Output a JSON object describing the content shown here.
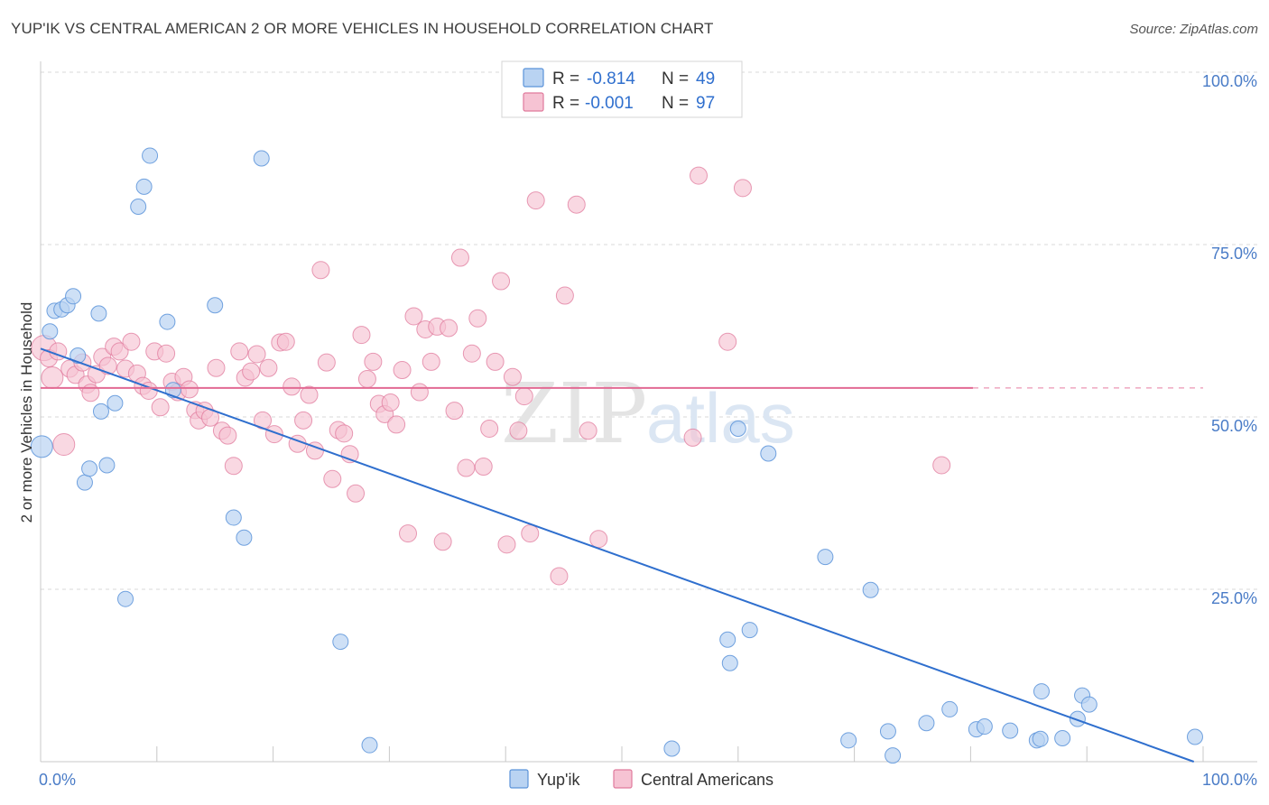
{
  "title": "YUP'IK VS CENTRAL AMERICAN 2 OR MORE VEHICLES IN HOUSEHOLD CORRELATION CHART",
  "source": "Source: ZipAtlas.com",
  "watermark": {
    "zip": "ZIP",
    "atlas": "atlas"
  },
  "colors": {
    "blue": "#5b93d9",
    "blue_fill": "#b9d3f2",
    "pink": "#e07a9c",
    "pink_fill": "#f6c3d3",
    "blue_line": "#2f6fce",
    "pink_line": "#e26a93"
  },
  "legend": {
    "rows": [
      {
        "r_label": "R =",
        "r_value": "-0.814",
        "n_label": "N =",
        "n_value": "49"
      },
      {
        "r_label": "R =",
        "r_value": "-0.001",
        "n_label": "N =",
        "n_value": "97"
      }
    ]
  },
  "bottom_legend": [
    "Yup'ik",
    "Central Americans"
  ],
  "chart_data": {
    "type": "scatter",
    "title": "YUP'IK VS CENTRAL AMERICAN 2 OR MORE VEHICLES IN HOUSEHOLD CORRELATION CHART",
    "xlabel": "",
    "ylabel": "2 or more Vehicles in Household",
    "xlim": [
      0,
      100
    ],
    "ylim": [
      0,
      100
    ],
    "x_tick_labels": [
      "0.0%",
      "100.0%"
    ],
    "y_ticks": [
      25,
      50,
      75,
      100
    ],
    "y_tick_labels": [
      "25.0%",
      "50.0%",
      "75.0%",
      "100.0%"
    ],
    "grid": true,
    "series": [
      {
        "name": "Yup'ik",
        "color": "#5b93d9",
        "trend": {
          "x": [
            0,
            99.2
          ],
          "y": [
            59.9,
            0
          ]
        },
        "points": [
          [
            0.1,
            45.7
          ],
          [
            0.8,
            62.4
          ],
          [
            1.2,
            65.4
          ],
          [
            1.8,
            65.6
          ],
          [
            2.3,
            66.2
          ],
          [
            2.8,
            67.5
          ],
          [
            3.2,
            58.9
          ],
          [
            3.8,
            40.5
          ],
          [
            4.2,
            42.5
          ],
          [
            5.0,
            65.0
          ],
          [
            5.2,
            50.8
          ],
          [
            5.7,
            43.0
          ],
          [
            6.4,
            52.0
          ],
          [
            7.3,
            23.6
          ],
          [
            8.4,
            80.5
          ],
          [
            8.9,
            83.4
          ],
          [
            9.4,
            87.9
          ],
          [
            10.9,
            63.8
          ],
          [
            11.4,
            53.9
          ],
          [
            15.0,
            66.2
          ],
          [
            16.6,
            35.4
          ],
          [
            17.5,
            32.5
          ],
          [
            19.0,
            87.5
          ],
          [
            25.8,
            17.4
          ],
          [
            28.3,
            2.4
          ],
          [
            54.3,
            1.9
          ],
          [
            59.1,
            17.7
          ],
          [
            59.3,
            14.3
          ],
          [
            60.0,
            48.3
          ],
          [
            61.0,
            19.1
          ],
          [
            62.6,
            44.7
          ],
          [
            67.5,
            29.7
          ],
          [
            69.5,
            3.1
          ],
          [
            71.4,
            24.9
          ],
          [
            72.9,
            4.4
          ],
          [
            73.3,
            0.9
          ],
          [
            76.2,
            5.6
          ],
          [
            78.2,
            7.6
          ],
          [
            80.5,
            4.7
          ],
          [
            81.2,
            5.1
          ],
          [
            83.4,
            4.5
          ],
          [
            85.7,
            3.1
          ],
          [
            86.0,
            3.3
          ],
          [
            86.1,
            10.2
          ],
          [
            87.9,
            3.4
          ],
          [
            89.2,
            6.2
          ],
          [
            89.6,
            9.6
          ],
          [
            90.2,
            8.3
          ],
          [
            99.3,
            3.6
          ]
        ]
      },
      {
        "name": "Central Americans",
        "color": "#e07a9c",
        "trend": {
          "x": [
            0,
            80.2
          ],
          "y": [
            54.2,
            54.2
          ],
          "dashed_to": 100
        },
        "points": [
          [
            0.3,
            60.0
          ],
          [
            0.7,
            58.5
          ],
          [
            1.0,
            55.7
          ],
          [
            1.5,
            59.5
          ],
          [
            2.0,
            46.0
          ],
          [
            2.5,
            57.0
          ],
          [
            3.0,
            56.1
          ],
          [
            3.6,
            57.9
          ],
          [
            4.0,
            54.7
          ],
          [
            4.3,
            53.5
          ],
          [
            4.8,
            56.2
          ],
          [
            5.3,
            58.7
          ],
          [
            5.8,
            57.4
          ],
          [
            6.3,
            60.2
          ],
          [
            6.8,
            59.5
          ],
          [
            7.3,
            57.0
          ],
          [
            7.8,
            60.9
          ],
          [
            8.3,
            56.3
          ],
          [
            8.8,
            54.5
          ],
          [
            9.3,
            53.8
          ],
          [
            9.8,
            59.5
          ],
          [
            10.3,
            51.4
          ],
          [
            10.8,
            59.2
          ],
          [
            11.3,
            55.1
          ],
          [
            11.8,
            53.6
          ],
          [
            12.3,
            55.8
          ],
          [
            12.8,
            54.0
          ],
          [
            13.3,
            51.0
          ],
          [
            13.6,
            49.5
          ],
          [
            14.1,
            50.9
          ],
          [
            14.6,
            49.9
          ],
          [
            15.1,
            57.1
          ],
          [
            15.6,
            48.0
          ],
          [
            16.1,
            47.3
          ],
          [
            16.6,
            42.9
          ],
          [
            17.1,
            59.5
          ],
          [
            17.6,
            55.7
          ],
          [
            18.1,
            56.6
          ],
          [
            18.6,
            59.1
          ],
          [
            19.1,
            49.5
          ],
          [
            19.6,
            57.1
          ],
          [
            20.1,
            47.5
          ],
          [
            20.6,
            60.8
          ],
          [
            21.1,
            60.9
          ],
          [
            21.6,
            54.4
          ],
          [
            22.1,
            46.1
          ],
          [
            22.6,
            49.5
          ],
          [
            23.1,
            53.2
          ],
          [
            23.6,
            45.1
          ],
          [
            24.1,
            71.3
          ],
          [
            24.6,
            57.9
          ],
          [
            25.1,
            41.0
          ],
          [
            25.6,
            48.1
          ],
          [
            26.1,
            47.6
          ],
          [
            26.6,
            44.6
          ],
          [
            27.1,
            38.9
          ],
          [
            27.6,
            61.9
          ],
          [
            28.1,
            55.5
          ],
          [
            28.6,
            58.0
          ],
          [
            29.1,
            51.9
          ],
          [
            29.6,
            50.4
          ],
          [
            30.1,
            52.1
          ],
          [
            30.6,
            48.9
          ],
          [
            31.1,
            56.8
          ],
          [
            31.6,
            33.1
          ],
          [
            32.1,
            64.6
          ],
          [
            32.6,
            53.6
          ],
          [
            33.1,
            62.7
          ],
          [
            33.6,
            58.0
          ],
          [
            34.1,
            63.1
          ],
          [
            34.6,
            31.9
          ],
          [
            35.1,
            62.9
          ],
          [
            35.6,
            50.9
          ],
          [
            36.1,
            73.1
          ],
          [
            36.6,
            42.6
          ],
          [
            37.1,
            59.2
          ],
          [
            37.6,
            64.3
          ],
          [
            38.1,
            42.8
          ],
          [
            38.6,
            48.3
          ],
          [
            39.1,
            58.0
          ],
          [
            39.6,
            69.7
          ],
          [
            40.1,
            31.5
          ],
          [
            40.6,
            55.8
          ],
          [
            41.1,
            48.0
          ],
          [
            41.6,
            53.0
          ],
          [
            42.1,
            33.1
          ],
          [
            42.6,
            81.4
          ],
          [
            44.6,
            26.9
          ],
          [
            45.1,
            67.6
          ],
          [
            46.1,
            80.8
          ],
          [
            47.1,
            48.0
          ],
          [
            48.0,
            32.3
          ],
          [
            56.1,
            47.0
          ],
          [
            56.6,
            85.0
          ],
          [
            59.1,
            60.9
          ],
          [
            60.4,
            83.2
          ],
          [
            77.5,
            43.0
          ]
        ]
      }
    ]
  }
}
